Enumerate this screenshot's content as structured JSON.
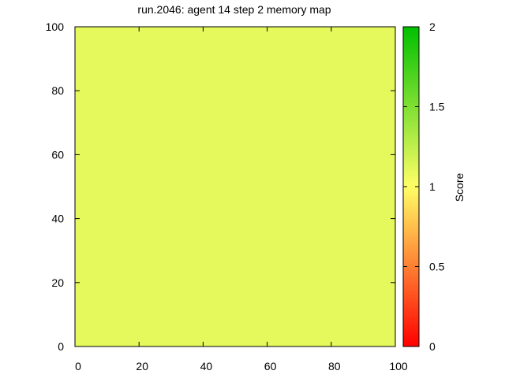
{
  "chart_data": {
    "type": "heatmap",
    "title": "run.2046: agent 14 step 2 memory map",
    "xlabel": "",
    "ylabel": "",
    "xlim": [
      0,
      100
    ],
    "ylim": [
      0,
      100
    ],
    "x_ticks": [
      "0",
      "20",
      "40",
      "60",
      "80",
      "100"
    ],
    "y_ticks": [
      "0",
      "20",
      "40",
      "60",
      "80",
      "100"
    ],
    "grid": false,
    "cells": [
      {
        "x0": 0,
        "x1": 100,
        "y0": 0,
        "y1": 100,
        "value": 1.1
      }
    ],
    "colorbar": {
      "label": "Score",
      "range": [
        0,
        2
      ],
      "ticks": [
        "0",
        "0.5",
        "1",
        "1.5",
        "2"
      ],
      "colors": [
        "#ff0000",
        "#ffff66",
        "#00c000"
      ]
    }
  }
}
